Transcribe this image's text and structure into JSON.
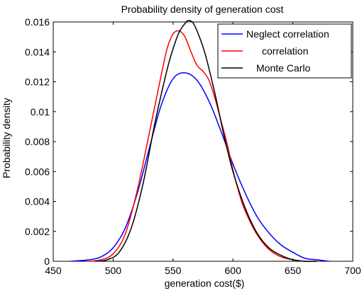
{
  "chart_data": {
    "type": "line",
    "title": "Probability density of generation cost",
    "xlabel": "generation cost($)",
    "ylabel": "Probability density",
    "xlim": [
      450,
      700
    ],
    "ylim": [
      0,
      0.016
    ],
    "xticks": [
      450,
      500,
      550,
      600,
      650,
      700
    ],
    "yticks": [
      0,
      0.002,
      0.004,
      0.006,
      0.008,
      0.01,
      0.012,
      0.014,
      0.016
    ],
    "ytick_labels": [
      "0",
      "0.002",
      "0.004",
      "0.006",
      "0.008",
      "0.01",
      "0.012",
      "0.014",
      "0.016"
    ],
    "xtick_labels": [
      "450",
      "500",
      "550",
      "600",
      "650",
      "700"
    ],
    "grid": false,
    "legend_position": "top-right",
    "series": [
      {
        "name": "Neglect correlation",
        "color": "#0000ff",
        "x": [
          465,
          480,
          490,
          500,
          510,
          520,
          530,
          540,
          550,
          560,
          570,
          580,
          590,
          600,
          610,
          620,
          630,
          640,
          650,
          660,
          670,
          680
        ],
        "y": [
          0.0,
          0.0001,
          0.0003,
          0.0009,
          0.0022,
          0.0045,
          0.0075,
          0.0104,
          0.0122,
          0.0126,
          0.0121,
          0.0107,
          0.0087,
          0.0065,
          0.0046,
          0.003,
          0.0019,
          0.0011,
          0.0006,
          0.0002,
          0.0001,
          0.0
        ]
      },
      {
        "name": "correlation",
        "color": "#ff0000",
        "x": [
          480,
          490,
          500,
          510,
          520,
          530,
          540,
          545,
          550,
          555,
          560,
          565,
          570,
          575,
          580,
          585,
          590,
          595,
          600,
          605,
          610,
          620,
          630,
          640,
          650,
          660,
          670
        ],
        "y": [
          0.0,
          0.0001,
          0.0005,
          0.0018,
          0.0047,
          0.0085,
          0.0124,
          0.0142,
          0.0152,
          0.0154,
          0.015,
          0.014,
          0.0131,
          0.0127,
          0.0121,
          0.0109,
          0.0094,
          0.0079,
          0.0061,
          0.0046,
          0.0034,
          0.0018,
          0.0008,
          0.0003,
          0.0001,
          0.0,
          0.0
        ]
      },
      {
        "name": "Monte Carlo",
        "color": "#000000",
        "x": [
          485,
          495,
          505,
          515,
          525,
          535,
          545,
          550,
          555,
          560,
          563,
          567,
          572,
          577,
          585,
          592,
          600,
          610,
          620,
          630,
          640,
          650,
          660,
          670
        ],
        "y": [
          0.0,
          0.0001,
          0.0006,
          0.0022,
          0.0052,
          0.0093,
          0.0128,
          0.0142,
          0.0153,
          0.0159,
          0.0161,
          0.0159,
          0.015,
          0.0138,
          0.0112,
          0.0086,
          0.006,
          0.0036,
          0.0019,
          0.0009,
          0.0004,
          0.0001,
          0.0,
          0.0
        ]
      }
    ]
  }
}
